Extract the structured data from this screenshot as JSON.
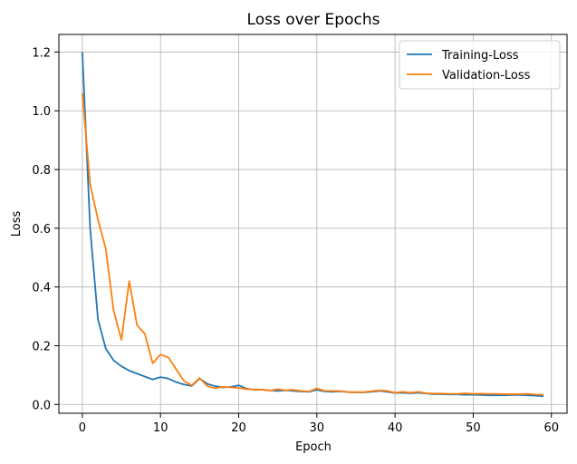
{
  "chart_data": {
    "type": "line",
    "title": "Loss over Epochs",
    "xlabel": "Epoch",
    "ylabel": "Loss",
    "xlim": [
      -3,
      62
    ],
    "ylim": [
      -0.03,
      1.26
    ],
    "xticks": [
      0,
      10,
      20,
      30,
      40,
      50,
      60
    ],
    "yticks": [
      0.0,
      0.2,
      0.4,
      0.6,
      0.8,
      1.0,
      1.2
    ],
    "grid": true,
    "legend_position": "top-right",
    "x": [
      0,
      1,
      2,
      3,
      4,
      5,
      6,
      7,
      8,
      9,
      10,
      11,
      12,
      13,
      14,
      15,
      16,
      17,
      18,
      19,
      20,
      21,
      22,
      23,
      24,
      25,
      26,
      27,
      28,
      29,
      30,
      31,
      32,
      33,
      34,
      35,
      36,
      37,
      38,
      39,
      40,
      41,
      42,
      43,
      44,
      45,
      46,
      47,
      48,
      49,
      50,
      51,
      52,
      53,
      54,
      55,
      56,
      57,
      58,
      59
    ],
    "series": [
      {
        "name": "Training-Loss",
        "color": "#1f77b4",
        "values": [
          1.2,
          0.6,
          0.29,
          0.19,
          0.15,
          0.13,
          0.115,
          0.105,
          0.095,
          0.085,
          0.093,
          0.088,
          0.076,
          0.068,
          0.063,
          0.088,
          0.07,
          0.062,
          0.058,
          0.06,
          0.065,
          0.054,
          0.05,
          0.05,
          0.048,
          0.046,
          0.048,
          0.046,
          0.044,
          0.043,
          0.05,
          0.044,
          0.043,
          0.045,
          0.042,
          0.041,
          0.041,
          0.043,
          0.046,
          0.043,
          0.039,
          0.04,
          0.038,
          0.04,
          0.037,
          0.035,
          0.035,
          0.034,
          0.034,
          0.033,
          0.033,
          0.032,
          0.031,
          0.031,
          0.031,
          0.032,
          0.032,
          0.031,
          0.03,
          0.028
        ]
      },
      {
        "name": "Validation-Loss",
        "color": "#ff7f0e",
        "values": [
          1.06,
          0.75,
          0.63,
          0.53,
          0.32,
          0.22,
          0.42,
          0.27,
          0.24,
          0.14,
          0.17,
          0.16,
          0.12,
          0.08,
          0.065,
          0.09,
          0.062,
          0.055,
          0.06,
          0.058,
          0.056,
          0.052,
          0.051,
          0.05,
          0.047,
          0.052,
          0.048,
          0.05,
          0.046,
          0.044,
          0.055,
          0.046,
          0.046,
          0.046,
          0.042,
          0.042,
          0.042,
          0.045,
          0.048,
          0.046,
          0.04,
          0.043,
          0.04,
          0.043,
          0.038,
          0.037,
          0.037,
          0.036,
          0.036,
          0.038,
          0.036,
          0.037,
          0.036,
          0.036,
          0.035,
          0.035,
          0.035,
          0.036,
          0.034,
          0.033
        ]
      }
    ]
  }
}
